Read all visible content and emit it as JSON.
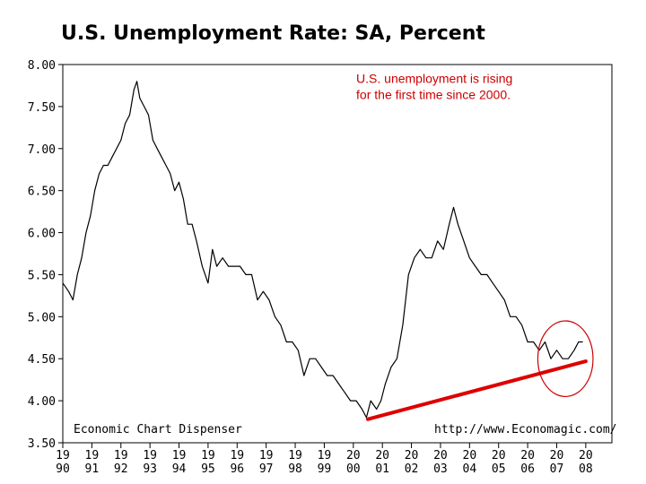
{
  "chart_data": {
    "type": "line",
    "title": "U.S. Unemployment Rate: SA, Percent",
    "xlim": [
      1990.0,
      2008.9
    ],
    "ylim": [
      3.5,
      8.0
    ],
    "y_ticks": [
      "8.00",
      "7.50",
      "7.00",
      "6.50",
      "6.00",
      "5.50",
      "5.00",
      "4.50",
      "4.00",
      "3.50"
    ],
    "x_ticks": [
      {
        "x": 1990,
        "top": "19",
        "bottom": "90"
      },
      {
        "x": 1991,
        "top": "19",
        "bottom": "91"
      },
      {
        "x": 1992,
        "top": "19",
        "bottom": "92"
      },
      {
        "x": 1993,
        "top": "19",
        "bottom": "93"
      },
      {
        "x": 1994,
        "top": "19",
        "bottom": "94"
      },
      {
        "x": 1995,
        "top": "19",
        "bottom": "95"
      },
      {
        "x": 1996,
        "top": "19",
        "bottom": "96"
      },
      {
        "x": 1997,
        "top": "19",
        "bottom": "97"
      },
      {
        "x": 1998,
        "top": "19",
        "bottom": "98"
      },
      {
        "x": 1999,
        "top": "19",
        "bottom": "99"
      },
      {
        "x": 2000,
        "top": "20",
        "bottom": "00"
      },
      {
        "x": 2001,
        "top": "20",
        "bottom": "01"
      },
      {
        "x": 2002,
        "top": "20",
        "bottom": "02"
      },
      {
        "x": 2003,
        "top": "20",
        "bottom": "03"
      },
      {
        "x": 2004,
        "top": "20",
        "bottom": "04"
      },
      {
        "x": 2005,
        "top": "20",
        "bottom": "05"
      },
      {
        "x": 2006,
        "top": "20",
        "bottom": "06"
      },
      {
        "x": 2007,
        "top": "20",
        "bottom": "07"
      },
      {
        "x": 2008,
        "top": "20",
        "bottom": "08"
      }
    ],
    "series": [
      {
        "color": "#000000",
        "points": [
          [
            1990.0,
            5.4
          ],
          [
            1990.2,
            5.3
          ],
          [
            1990.35,
            5.2
          ],
          [
            1990.5,
            5.5
          ],
          [
            1990.65,
            5.7
          ],
          [
            1990.8,
            6.0
          ],
          [
            1990.95,
            6.2
          ],
          [
            1991.1,
            6.5
          ],
          [
            1991.25,
            6.7
          ],
          [
            1991.4,
            6.8
          ],
          [
            1991.55,
            6.8
          ],
          [
            1991.7,
            6.9
          ],
          [
            1991.85,
            7.0
          ],
          [
            1992.0,
            7.1
          ],
          [
            1992.15,
            7.3
          ],
          [
            1992.3,
            7.4
          ],
          [
            1992.45,
            7.7
          ],
          [
            1992.55,
            7.8
          ],
          [
            1992.65,
            7.6
          ],
          [
            1992.8,
            7.5
          ],
          [
            1992.95,
            7.4
          ],
          [
            1993.1,
            7.1
          ],
          [
            1993.25,
            7.0
          ],
          [
            1993.4,
            6.9
          ],
          [
            1993.55,
            6.8
          ],
          [
            1993.7,
            6.7
          ],
          [
            1993.85,
            6.5
          ],
          [
            1994.0,
            6.6
          ],
          [
            1994.15,
            6.4
          ],
          [
            1994.3,
            6.1
          ],
          [
            1994.45,
            6.1
          ],
          [
            1994.6,
            5.9
          ],
          [
            1994.8,
            5.6
          ],
          [
            1995.0,
            5.4
          ],
          [
            1995.15,
            5.8
          ],
          [
            1995.3,
            5.6
          ],
          [
            1995.5,
            5.7
          ],
          [
            1995.7,
            5.6
          ],
          [
            1995.9,
            5.6
          ],
          [
            1996.1,
            5.6
          ],
          [
            1996.3,
            5.5
          ],
          [
            1996.5,
            5.5
          ],
          [
            1996.7,
            5.2
          ],
          [
            1996.9,
            5.3
          ],
          [
            1997.1,
            5.2
          ],
          [
            1997.3,
            5.0
          ],
          [
            1997.5,
            4.9
          ],
          [
            1997.7,
            4.7
          ],
          [
            1997.9,
            4.7
          ],
          [
            1998.1,
            4.6
          ],
          [
            1998.3,
            4.3
          ],
          [
            1998.5,
            4.5
          ],
          [
            1998.7,
            4.5
          ],
          [
            1998.9,
            4.4
          ],
          [
            1999.1,
            4.3
          ],
          [
            1999.3,
            4.3
          ],
          [
            1999.5,
            4.2
          ],
          [
            1999.7,
            4.1
          ],
          [
            1999.9,
            4.0
          ],
          [
            2000.1,
            4.0
          ],
          [
            2000.3,
            3.9
          ],
          [
            2000.45,
            3.8
          ],
          [
            2000.6,
            4.0
          ],
          [
            2000.8,
            3.9
          ],
          [
            2000.95,
            4.0
          ],
          [
            2001.1,
            4.2
          ],
          [
            2001.3,
            4.4
          ],
          [
            2001.5,
            4.5
          ],
          [
            2001.7,
            4.9
          ],
          [
            2001.9,
            5.5
          ],
          [
            2002.1,
            5.7
          ],
          [
            2002.3,
            5.8
          ],
          [
            2002.5,
            5.7
          ],
          [
            2002.7,
            5.7
          ],
          [
            2002.9,
            5.9
          ],
          [
            2003.1,
            5.8
          ],
          [
            2003.3,
            6.1
          ],
          [
            2003.45,
            6.3
          ],
          [
            2003.6,
            6.1
          ],
          [
            2003.8,
            5.9
          ],
          [
            2004.0,
            5.7
          ],
          [
            2004.2,
            5.6
          ],
          [
            2004.4,
            5.5
          ],
          [
            2004.6,
            5.5
          ],
          [
            2004.8,
            5.4
          ],
          [
            2005.0,
            5.3
          ],
          [
            2005.2,
            5.2
          ],
          [
            2005.4,
            5.0
          ],
          [
            2005.6,
            5.0
          ],
          [
            2005.8,
            4.9
          ],
          [
            2006.0,
            4.7
          ],
          [
            2006.2,
            4.7
          ],
          [
            2006.4,
            4.6
          ],
          [
            2006.6,
            4.7
          ],
          [
            2006.8,
            4.5
          ],
          [
            2007.0,
            4.6
          ],
          [
            2007.2,
            4.5
          ],
          [
            2007.4,
            4.5
          ],
          [
            2007.6,
            4.6
          ],
          [
            2007.75,
            4.7
          ],
          [
            2007.9,
            4.7
          ]
        ]
      }
    ],
    "trendline": {
      "color": "#dd0000",
      "x": [
        2000.5,
        2008.0
      ],
      "y": [
        3.78,
        4.47
      ]
    },
    "highlight_ellipse": {
      "color": "#cc0000",
      "cx": 2007.3,
      "cy": 4.5,
      "rx": 0.95,
      "ry": 0.45
    },
    "annotation": {
      "lines": [
        "U.S. unemployment is rising",
        "for the first time since 2000."
      ],
      "x": 2000.1,
      "y": 7.78
    },
    "source_left": "Economic Chart Dispenser",
    "source_right": "http://www.Economagic.com/"
  }
}
